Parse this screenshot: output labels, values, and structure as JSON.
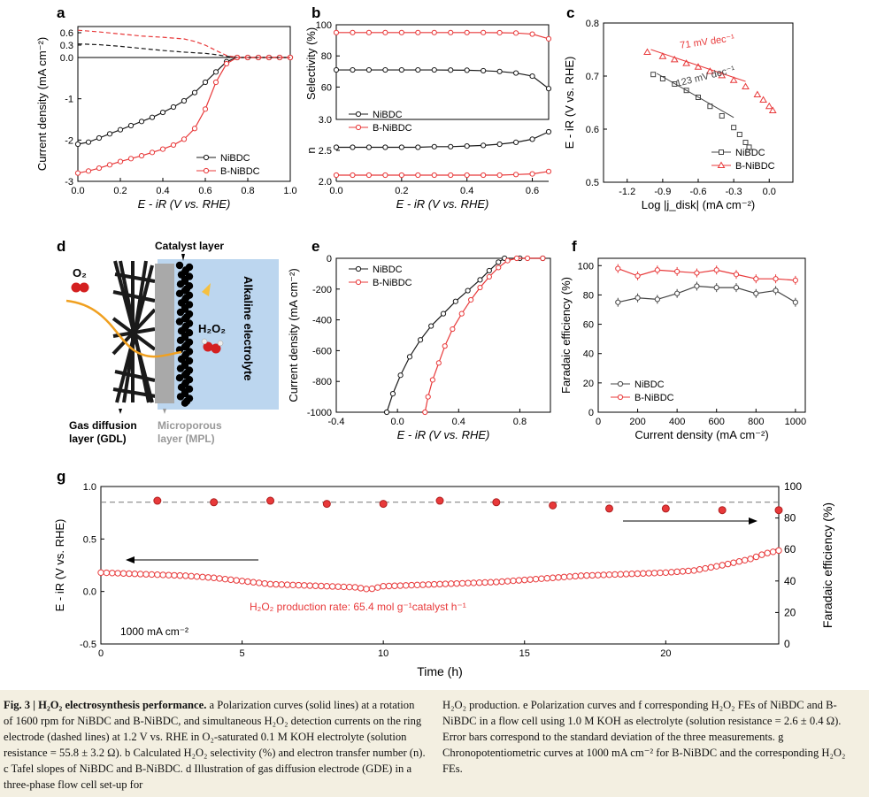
{
  "colors": {
    "black": "#1a1a1a",
    "red": "#e8393a",
    "gray": "#666666",
    "axis": "#000000",
    "blue_bg": "#bcd6ef",
    "mpl": "#a9a9a9"
  },
  "panels": {
    "a": "a",
    "b": "b",
    "c": "c",
    "d": "d",
    "e": "e",
    "f": "f",
    "g": "g"
  },
  "legend": {
    "s1": "NiBDC",
    "s2": "B-NiBDC"
  },
  "chart_data": [
    {
      "id": "a",
      "type": "line",
      "xlabel": "E - iR (V vs. RHE)",
      "ylabel": "Current density (mA cm⁻²)",
      "xlim": [
        0,
        1.0
      ],
      "ylim": [
        -3,
        0.75
      ],
      "xticks": [
        0.0,
        0.2,
        0.4,
        0.6,
        0.8,
        1.0
      ],
      "xtick_labels": [
        "0.0",
        "0.2",
        "0.4",
        "0.6",
        "0.8",
        "1.0"
      ],
      "yticks": [
        0.6,
        0.3,
        0.0,
        -1,
        -2,
        -3
      ],
      "ytick_labels": [
        "0.6",
        "0.3",
        "0.0",
        "-1",
        "-2",
        "-3"
      ],
      "series": [
        {
          "name": "NiBDC",
          "style": "solid-marker",
          "color": "#1a1a1a",
          "x": [
            0,
            0.05,
            0.1,
            0.15,
            0.2,
            0.25,
            0.3,
            0.35,
            0.4,
            0.45,
            0.5,
            0.55,
            0.6,
            0.65,
            0.7,
            0.75,
            0.8,
            0.85,
            0.9,
            0.95,
            1.0
          ],
          "y": [
            -2.1,
            -2.05,
            -1.95,
            -1.85,
            -1.75,
            -1.65,
            -1.55,
            -1.45,
            -1.33,
            -1.2,
            -1.05,
            -0.85,
            -0.6,
            -0.35,
            -0.1,
            0.0,
            0.0,
            0.0,
            0.0,
            0.0,
            0.0
          ]
        },
        {
          "name": "B-NiBDC",
          "style": "solid-marker",
          "color": "#e8393a",
          "x": [
            0,
            0.05,
            0.1,
            0.15,
            0.2,
            0.25,
            0.3,
            0.35,
            0.4,
            0.45,
            0.5,
            0.55,
            0.6,
            0.65,
            0.7,
            0.75,
            0.8,
            0.85,
            0.9,
            0.95,
            1.0
          ],
          "y": [
            -2.8,
            -2.75,
            -2.68,
            -2.6,
            -2.52,
            -2.45,
            -2.38,
            -2.3,
            -2.22,
            -2.12,
            -1.98,
            -1.72,
            -1.25,
            -0.6,
            -0.15,
            0.0,
            0.0,
            0.0,
            0.0,
            0.0,
            0.0
          ]
        },
        {
          "name": "NiBDC ring",
          "style": "dashed",
          "color": "#1a1a1a",
          "x": [
            0,
            0.1,
            0.2,
            0.3,
            0.4,
            0.5,
            0.6,
            0.65,
            0.7,
            0.75,
            0.8,
            1.0
          ],
          "y": [
            0.33,
            0.31,
            0.27,
            0.22,
            0.17,
            0.13,
            0.1,
            0.07,
            0.03,
            0.0,
            0.0,
            0.0
          ]
        },
        {
          "name": "B-NiBDC ring",
          "style": "dashed",
          "color": "#e8393a",
          "x": [
            0,
            0.1,
            0.2,
            0.3,
            0.4,
            0.5,
            0.55,
            0.6,
            0.65,
            0.7,
            0.75,
            0.8,
            1.0
          ],
          "y": [
            0.66,
            0.62,
            0.57,
            0.52,
            0.49,
            0.45,
            0.39,
            0.3,
            0.17,
            0.05,
            0.0,
            0.0,
            0.0
          ]
        }
      ]
    },
    {
      "id": "b_top",
      "type": "line",
      "ylabel": "Selectivity (%)",
      "xlim": [
        0,
        0.65
      ],
      "ylim": [
        50,
        100
      ],
      "yticks": [
        100,
        80,
        60
      ],
      "ytick_labels": [
        "100",
        "80",
        "60"
      ],
      "series": [
        {
          "name": "B-NiBDC",
          "color": "#e8393a",
          "x": [
            0,
            0.05,
            0.1,
            0.15,
            0.2,
            0.25,
            0.3,
            0.35,
            0.4,
            0.45,
            0.5,
            0.55,
            0.6,
            0.65
          ],
          "y": [
            95,
            95,
            95,
            95,
            95,
            95,
            95,
            95,
            95,
            95,
            94.9,
            94.7,
            94,
            91
          ]
        },
        {
          "name": "NiBDC",
          "color": "#1a1a1a",
          "x": [
            0,
            0.05,
            0.1,
            0.15,
            0.2,
            0.25,
            0.3,
            0.35,
            0.4,
            0.45,
            0.5,
            0.55,
            0.6,
            0.65
          ],
          "y": [
            71,
            71,
            71,
            71,
            71,
            71,
            71,
            70.9,
            70.8,
            70.5,
            70,
            69,
            67,
            59
          ]
        }
      ]
    },
    {
      "id": "b_bottom",
      "type": "line",
      "xlabel": "E - iR (V vs. RHE)",
      "ylabel": "n",
      "xlim": [
        0,
        0.65
      ],
      "ylim": [
        2.0,
        3.0
      ],
      "xticks": [
        0.0,
        0.2,
        0.4,
        0.6
      ],
      "xtick_labels": [
        "0.0",
        "0.2",
        "0.4",
        "0.6"
      ],
      "yticks": [
        3.0,
        2.5,
        2.0
      ],
      "ytick_labels": [
        "3.0",
        "2.5",
        "2.0"
      ],
      "series": [
        {
          "name": "NiBDC",
          "color": "#1a1a1a",
          "x": [
            0,
            0.05,
            0.1,
            0.15,
            0.2,
            0.25,
            0.3,
            0.35,
            0.4,
            0.45,
            0.5,
            0.55,
            0.6,
            0.65
          ],
          "y": [
            2.55,
            2.55,
            2.55,
            2.55,
            2.55,
            2.55,
            2.56,
            2.56,
            2.57,
            2.58,
            2.6,
            2.63,
            2.68,
            2.8
          ]
        },
        {
          "name": "B-NiBDC",
          "color": "#e8393a",
          "x": [
            0,
            0.05,
            0.1,
            0.15,
            0.2,
            0.25,
            0.3,
            0.35,
            0.4,
            0.45,
            0.5,
            0.55,
            0.6,
            0.65
          ],
          "y": [
            2.1,
            2.1,
            2.1,
            2.1,
            2.1,
            2.1,
            2.1,
            2.1,
            2.1,
            2.1,
            2.1,
            2.11,
            2.12,
            2.16
          ]
        }
      ],
      "legend_position": "top-left"
    },
    {
      "id": "c",
      "type": "scatter",
      "xlabel": "Log |j_disk| (mA cm⁻²)",
      "ylabel": "E - iR (V vs. RHE)",
      "xlim": [
        -1.4,
        0.2
      ],
      "ylim": [
        0.5,
        0.8
      ],
      "xticks": [
        -1.2,
        -0.9,
        -0.6,
        -0.3,
        0.0
      ],
      "xtick_labels": [
        "-1.2",
        "-0.9",
        "-0.6",
        "-0.3",
        "0.0"
      ],
      "yticks": [
        0.8,
        0.7,
        0.6,
        0.5
      ],
      "ytick_labels": [
        "0.8",
        "0.7",
        "0.6",
        "0.5"
      ],
      "annotations": [
        "71 mV dec⁻¹",
        "123 mV dec⁻¹"
      ],
      "series": [
        {
          "name": "NiBDC",
          "marker": "square",
          "color": "#444444",
          "x": [
            -0.98,
            -0.9,
            -0.8,
            -0.7,
            -0.6,
            -0.5,
            -0.4,
            -0.3,
            -0.25,
            -0.2,
            -0.17
          ],
          "y": [
            0.703,
            0.695,
            0.685,
            0.673,
            0.66,
            0.643,
            0.625,
            0.603,
            0.59,
            0.575,
            0.566
          ]
        },
        {
          "name": "B-NiBDC",
          "marker": "triangle",
          "color": "#e8393a",
          "x": [
            -1.03,
            -0.9,
            -0.8,
            -0.7,
            -0.6,
            -0.5,
            -0.4,
            -0.3,
            -0.2,
            -0.1,
            -0.05,
            0.0,
            0.03
          ],
          "y": [
            0.745,
            0.737,
            0.731,
            0.724,
            0.717,
            0.709,
            0.701,
            0.692,
            0.68,
            0.665,
            0.655,
            0.643,
            0.635
          ]
        }
      ],
      "legend_position": "bottom-right"
    },
    {
      "id": "e",
      "type": "line",
      "xlabel": "E - iR (V vs. RHE)",
      "ylabel": "Current density (mA cm⁻²)",
      "xlim": [
        -0.4,
        1.0
      ],
      "ylim": [
        -1000,
        0
      ],
      "xticks": [
        -0.4,
        0.0,
        0.4,
        0.8
      ],
      "xtick_labels": [
        "-0.4",
        "0.0",
        "0.4",
        "0.8"
      ],
      "yticks": [
        0,
        -200,
        -400,
        -600,
        -800,
        -1000
      ],
      "ytick_labels": [
        "0",
        "-200",
        "-400",
        "-600",
        "-800",
        "-1000"
      ],
      "series": [
        {
          "name": "NiBDC",
          "color": "#1a1a1a",
          "x": [
            -0.07,
            -0.03,
            0.02,
            0.08,
            0.15,
            0.22,
            0.3,
            0.38,
            0.46,
            0.54,
            0.6,
            0.66,
            0.7,
            0.8,
            0.95
          ],
          "y": [
            -1000,
            -880,
            -760,
            -640,
            -530,
            -440,
            -360,
            -280,
            -210,
            -140,
            -80,
            -25,
            0,
            0,
            0
          ]
        },
        {
          "name": "B-NiBDC",
          "color": "#e8393a",
          "x": [
            0.18,
            0.2,
            0.23,
            0.27,
            0.31,
            0.36,
            0.42,
            0.48,
            0.54,
            0.6,
            0.66,
            0.72,
            0.78,
            0.85,
            0.95
          ],
          "y": [
            -1000,
            -900,
            -790,
            -680,
            -570,
            -460,
            -360,
            -270,
            -190,
            -120,
            -60,
            -15,
            0,
            0,
            0
          ]
        }
      ],
      "legend_position": "top-left"
    },
    {
      "id": "f",
      "type": "line",
      "xlabel": "Current density (mA cm⁻²)",
      "ylabel": "Faradaic efficiency (%)",
      "xlim": [
        0,
        1050
      ],
      "ylim": [
        0,
        105
      ],
      "xticks": [
        0,
        200,
        400,
        600,
        800,
        1000
      ],
      "xtick_labels": [
        "0",
        "200",
        "400",
        "600",
        "800",
        "1000"
      ],
      "yticks": [
        0,
        20,
        40,
        60,
        80,
        100
      ],
      "ytick_labels": [
        "0",
        "20",
        "40",
        "60",
        "80",
        "100"
      ],
      "series": [
        {
          "name": "NiBDC",
          "color": "#444444",
          "x": [
            100,
            200,
            300,
            400,
            500,
            600,
            700,
            800,
            900,
            1000
          ],
          "y": [
            75,
            78,
            77,
            81,
            86,
            85,
            85,
            81,
            83,
            75
          ]
        },
        {
          "name": "B-NiBDC",
          "color": "#e8393a",
          "x": [
            100,
            200,
            300,
            400,
            500,
            600,
            700,
            800,
            900,
            1000
          ],
          "y": [
            98,
            93,
            97,
            96,
            95,
            97,
            94,
            91,
            91,
            90
          ]
        }
      ],
      "legend_position": "bottom-left"
    },
    {
      "id": "g",
      "type": "scatter",
      "xlabel": "Time (h)",
      "ylabel": "E - iR (V vs. RHE)",
      "ylabel_right": "Faradaic efficiency (%)",
      "xlim": [
        0,
        24
      ],
      "ylim": [
        -0.5,
        1.0
      ],
      "ylim_right": [
        0,
        100
      ],
      "xticks": [
        0,
        5,
        10,
        15,
        20
      ],
      "xtick_labels": [
        "0",
        "5",
        "10",
        "15",
        "20"
      ],
      "yticks": [
        1.0,
        0.5,
        0.0,
        -0.5
      ],
      "ytick_labels": [
        "1.0",
        "0.5",
        "0.0",
        "-0.5"
      ],
      "yticks_right": [
        100,
        80,
        60,
        40,
        20,
        0
      ],
      "ytick_labels_right": [
        "100",
        "80",
        "60",
        "40",
        "20",
        "0"
      ],
      "reference_line_fe": 90,
      "fe_series": {
        "x": [
          2,
          4,
          6,
          8,
          10,
          12,
          14,
          16,
          18,
          20,
          22,
          24
        ],
        "y": [
          91,
          90,
          91,
          89,
          89,
          91,
          90,
          88,
          86,
          86,
          85,
          85
        ]
      },
      "potential_series": {
        "x": [
          0,
          1,
          2,
          3,
          4,
          5,
          6,
          7,
          8,
          9,
          9.5,
          10,
          11,
          12,
          13,
          14,
          15,
          16,
          17,
          18,
          19,
          20,
          21,
          22,
          23,
          23.5,
          24
        ],
        "y": [
          0.18,
          0.17,
          0.16,
          0.15,
          0.13,
          0.1,
          0.07,
          0.06,
          0.05,
          0.04,
          0.02,
          0.05,
          0.06,
          0.07,
          0.08,
          0.09,
          0.11,
          0.13,
          0.15,
          0.16,
          0.17,
          0.18,
          0.2,
          0.25,
          0.31,
          0.36,
          0.39
        ]
      },
      "annotations": [
        "H₂O₂ production rate: 65.4 mol g⁻¹catalyst h⁻¹",
        "1000 mA cm⁻²"
      ]
    }
  ],
  "diagram_d": {
    "catalyst_layer": "Catalyst layer",
    "o2": "O₂",
    "h2o2": "H₂O₂",
    "alkaline": "Alkaline electrolyte",
    "gdl": "Gas diffusion",
    "gdl2": "layer (GDL)",
    "mpl": "Microporous",
    "mpl2": "layer (MPL)"
  },
  "caption": {
    "fig_label": "Fig. 3 | H₂O₂ electrosynthesis performance.",
    "left": " a Polarization curves (solid lines) at a rotation of 1600 rpm for NiBDC and B-NiBDC, and simultaneous H₂O₂ detection currents on the ring electrode (dashed lines) at 1.2 V vs. RHE in O₂-saturated 0.1 M KOH electrolyte (solution resistance = 55.8 ± 3.2 Ω). b Calculated H₂O₂ selectivity (%) and electron transfer number (n). c Tafel slopes of NiBDC and B-NiBDC. d Illustration of gas diffusion electrode (GDE) in a three-phase flow cell set-up for",
    "right": "H₂O₂ production. e Polarization curves and f corresponding H₂O₂ FEs of NiBDC and B-NiBDC in a flow cell using 1.0 M KOH as electrolyte (solution resistance = 2.6 ± 0.4 Ω). Error bars correspond to the standard deviation of the three measurements. g Chronopotentiometric curves at 1000 mA cm⁻² for B-NiBDC and the corresponding H₂O₂ FEs."
  }
}
